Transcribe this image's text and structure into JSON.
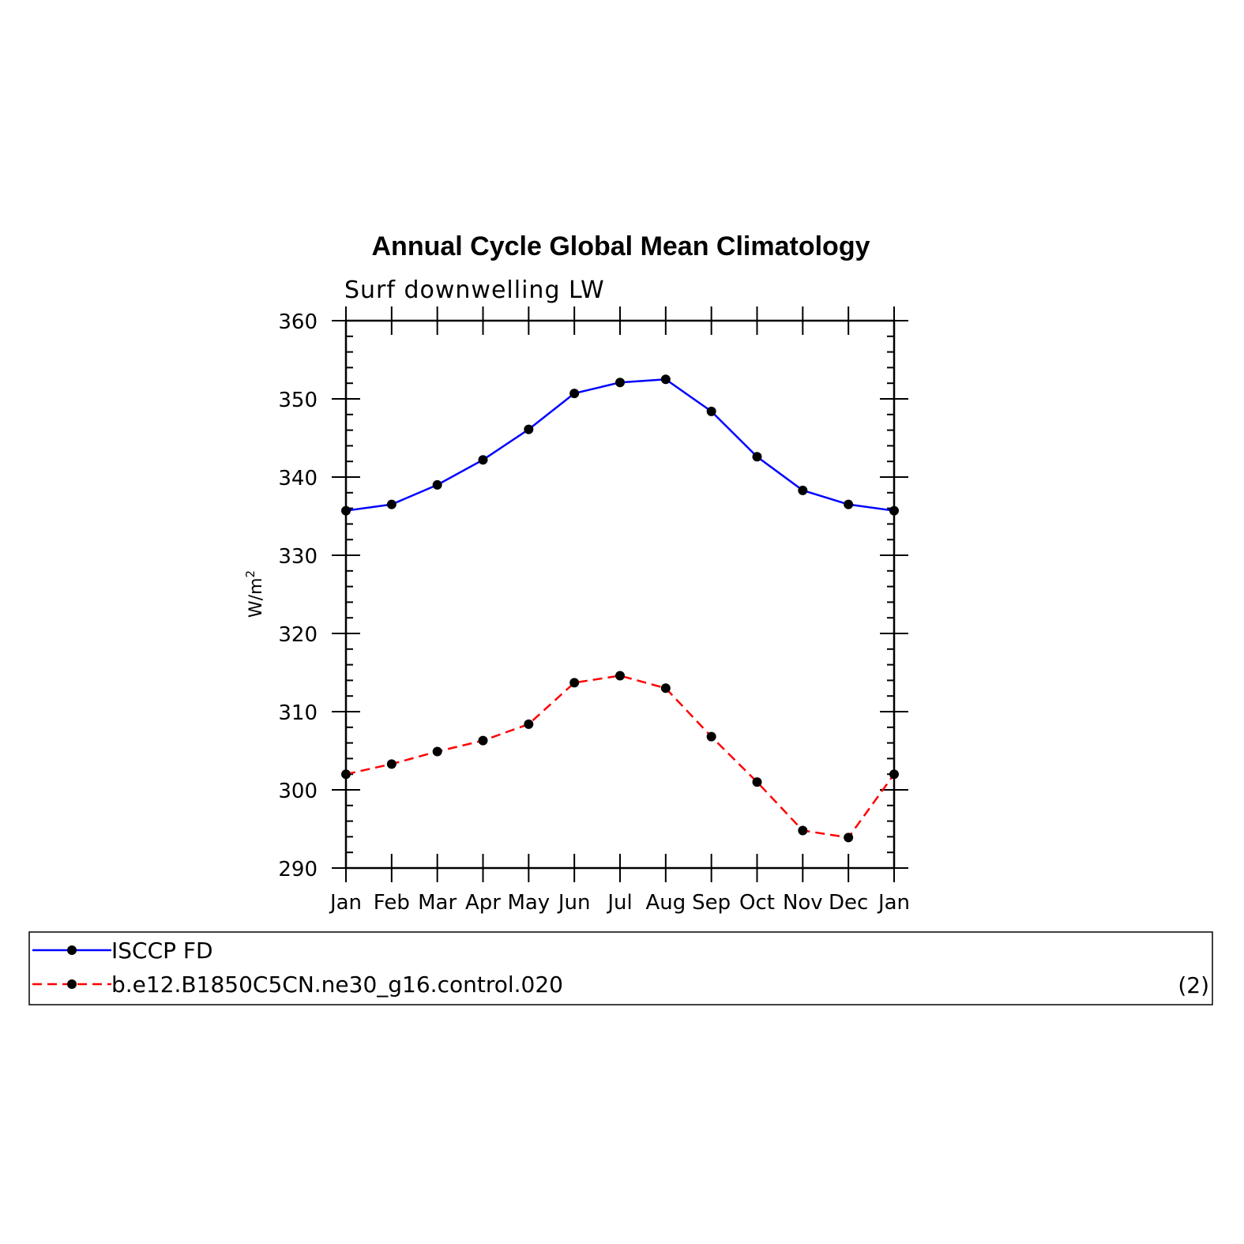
{
  "chart_data": {
    "type": "line",
    "title": "Annual Cycle Global Mean Climatology",
    "subtitle": "Surf downwelling LW",
    "ylabel": "W/m",
    "ylabel_sup": "2",
    "xlabel": "",
    "categories": [
      "Jan",
      "Feb",
      "Mar",
      "Apr",
      "May",
      "Jun",
      "Jul",
      "Aug",
      "Sep",
      "Oct",
      "Nov",
      "Dec",
      "Jan"
    ],
    "ylim": [
      290,
      360
    ],
    "yticks": [
      290,
      300,
      310,
      320,
      330,
      340,
      350,
      360
    ],
    "grid": false,
    "legend_placement": "bottom",
    "series": [
      {
        "name": "ISCCP FD",
        "color": "#0000ff",
        "dash": "solid",
        "values": [
          335.7,
          336.5,
          339.0,
          342.2,
          346.1,
          350.7,
          352.1,
          352.5,
          348.4,
          342.6,
          338.3,
          336.5,
          335.7
        ]
      },
      {
        "name": "b.e12.B1850C5CN.ne30_g16.control.020",
        "color": "#ff0000",
        "dash": "dashed",
        "values": [
          302.0,
          303.3,
          304.9,
          306.3,
          308.4,
          313.7,
          314.6,
          313.0,
          306.8,
          301.0,
          294.8,
          293.9,
          302.0
        ]
      }
    ],
    "legend_note": "(2)"
  }
}
